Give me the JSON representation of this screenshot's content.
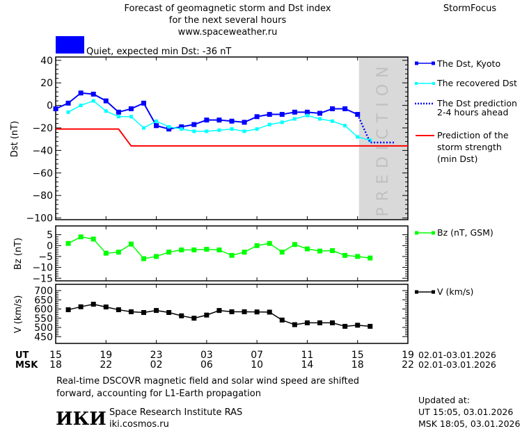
{
  "header": {
    "title_line1": "Forecast of geomagnetic storm and Dst index",
    "title_line2": "for the next several hours",
    "url": "www.spaceweather.ru",
    "brand": "StormFocus",
    "status_text": "Quiet, expected min Dst: -36 nT",
    "status_color": "#0000ff"
  },
  "footer": {
    "note_line1": "Real-time DSCOVR magnetic field and solar wind speed are shifted",
    "note_line2": "forward, accounting for L1-Earth propagation",
    "logo_text": "ИКИ",
    "institute": "Space Research Institute RAS",
    "institute_url": "iki.cosmos.ru",
    "updated_label": "Updated at:",
    "updated_ut": "UT   15:05, 03.01.2026",
    "updated_msk": "MSK 18:05, 03.01.2026"
  },
  "chart_data": [
    {
      "type": "line",
      "ylabel": "Dst (nT)",
      "ylim": [
        -100,
        40
      ],
      "yticks": [
        40,
        20,
        0,
        -20,
        -40,
        -60,
        -80,
        -100
      ],
      "prediction_band_label": "PREDICTION",
      "prediction_band_color": "#d9d9d9",
      "times": [
        "02.01 15:00",
        "02.01 16:00",
        "02.01 17:00",
        "02.01 18:00",
        "02.01 19:00",
        "02.01 20:00",
        "02.01 21:00",
        "02.01 22:00",
        "02.01 23:00",
        "03.01 00:00",
        "03.01 01:00",
        "03.01 02:00",
        "03.01 03:00",
        "03.01 04:00",
        "03.01 05:00",
        "03.01 06:00",
        "03.01 07:00",
        "03.01 08:00",
        "03.01 09:00",
        "03.01 10:00",
        "03.01 11:00",
        "03.01 12:00",
        "03.01 13:00",
        "03.01 14:00",
        "03.01 15:00",
        "03.01 16:00",
        "03.01 17:00",
        "03.01 18:00"
      ],
      "series": [
        {
          "name": "The Dst, Kyoto",
          "color": "#0000ff",
          "style": "line-square",
          "values": [
            -3,
            2,
            11,
            10,
            4,
            -6,
            -3,
            2,
            -18,
            -21,
            -19,
            -17,
            -13,
            -13,
            -14,
            -15,
            -10,
            -8,
            -8,
            -6,
            -6,
            -7,
            -3,
            -3,
            -8,
            null,
            null,
            null
          ]
        },
        {
          "name": "The recovered Dst",
          "color": "#00ffff",
          "style": "line-small-square",
          "values": [
            null,
            -6,
            0,
            4,
            -5,
            -10,
            -10,
            -20,
            -14,
            -19,
            -21,
            -23,
            -23,
            -22,
            -21,
            -23,
            -21,
            -17,
            -15,
            -12,
            -9,
            -12,
            -14,
            -18,
            -28,
            -31,
            null,
            null
          ]
        },
        {
          "name": "The Dst prediction\n2-4 hours ahead",
          "name_line1": "The Dst prediction",
          "name_line2": "2-4 hours ahead",
          "color": "#0000ff",
          "style": "dotted",
          "values": [
            null,
            null,
            null,
            null,
            null,
            null,
            null,
            null,
            null,
            null,
            null,
            null,
            null,
            null,
            null,
            null,
            null,
            null,
            null,
            null,
            null,
            null,
            null,
            null,
            -8,
            -33,
            -33,
            -33
          ]
        },
        {
          "name": "Prediction of the storm strength (min Dst)",
          "name_line1": "Prediction of the",
          "name_line2": "storm strength",
          "name_line3": "(min Dst)",
          "color": "#ff0000",
          "style": "line",
          "values": [
            -21,
            -21,
            -21,
            -21,
            -21,
            -21,
            -36,
            -36,
            -36,
            -36,
            -36,
            -36,
            -36,
            -36,
            -36,
            -36,
            -36,
            -36,
            -36,
            -36,
            -36,
            -36,
            -36,
            -36,
            -36,
            -36,
            -36,
            -36
          ]
        }
      ]
    },
    {
      "type": "line",
      "ylabel": "Bz (nT)",
      "ylim": [
        -16,
        9
      ],
      "yticks": [
        5,
        0,
        -5,
        -10,
        -15
      ],
      "series": [
        {
          "name": "Bz (nT, GSM)",
          "color": "#00ff00",
          "values": [
            null,
            1,
            4,
            3,
            -3.5,
            -3,
            0.7,
            -6,
            -5,
            -3,
            -2,
            -2,
            -1.7,
            -2,
            -4.5,
            -3,
            0,
            1,
            -3,
            0.5,
            -1.5,
            -2.5,
            -2.3,
            -4.5,
            -5,
            -5.7,
            null,
            null
          ]
        }
      ]
    },
    {
      "type": "line",
      "ylabel": "V (km/s)",
      "ylim": [
        420,
        730
      ],
      "yticks": [
        700,
        650,
        600,
        550,
        500,
        450
      ],
      "series": [
        {
          "name": "V (km/s)",
          "color": "#000000",
          "values": [
            null,
            596,
            612,
            626,
            611,
            596,
            585,
            581,
            592,
            581,
            563,
            550,
            567,
            592,
            585,
            585,
            584,
            583,
            540,
            515,
            525,
            525,
            525,
            506,
            512,
            506,
            null,
            null
          ]
        }
      ]
    }
  ],
  "time_axis": {
    "ut_label": "UT",
    "msk_label": "MSK",
    "ut_ticks": [
      "15",
      "19",
      "23",
      "03",
      "07",
      "11",
      "15",
      "19"
    ],
    "msk_ticks": [
      "18",
      "22",
      "02",
      "06",
      "10",
      "14",
      "18",
      "22"
    ],
    "date_range_ut": "02.01-03.01.2026",
    "date_range_msk": "02.01-03.01.2026"
  }
}
